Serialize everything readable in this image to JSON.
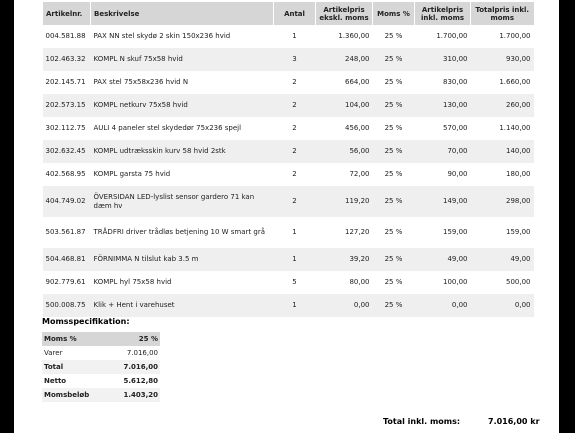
{
  "table": {
    "columns": [
      "Artikelnr.",
      "Beskrivelse",
      "Antal",
      "Artikelpris ekskl. moms",
      "Moms %",
      "Artikelpris inkl. moms",
      "Totalpris inkl. moms"
    ],
    "rows": [
      [
        "004.581.88",
        "PAX NN stel skydø 2 skin 150x236 hvid",
        "1",
        "1.360,00",
        "25 %",
        "1.700,00",
        "1.700,00"
      ],
      [
        "102.463.32",
        "KOMPL N skuf 75x58 hvid",
        "3",
        "248,00",
        "25 %",
        "310,00",
        "930,00"
      ],
      [
        "202.145.71",
        "PAX stel 75x58x236 hvid N",
        "2",
        "664,00",
        "25 %",
        "830,00",
        "1.660,00"
      ],
      [
        "202.573.15",
        "KOMPL netkurv 75x58 hvid",
        "2",
        "104,00",
        "25 %",
        "130,00",
        "260,00"
      ],
      [
        "302.112.75",
        "AULI 4 paneler stel skydedør 75x236 spejl",
        "2",
        "456,00",
        "25 %",
        "570,00",
        "1.140,00"
      ],
      [
        "302.632.45",
        "KOMPL udtræksskin kurv 58 hvid 2stk",
        "2",
        "56,00",
        "25 %",
        "70,00",
        "140,00"
      ],
      [
        "402.568.95",
        "KOMPL garsta 75 hvid",
        "2",
        "72,00",
        "25 %",
        "90,00",
        "180,00"
      ],
      [
        "404.749.02",
        "ÖVERSIDAN LED-lyslist sensor gardero 71 kan dæm hv",
        "2",
        "119,20",
        "25 %",
        "149,00",
        "298,00"
      ],
      [
        "503.561.87",
        "TRÅDFRI driver trådløs betjening 10 W smart grå",
        "1",
        "127,20",
        "25 %",
        "159,00",
        "159,00"
      ],
      [
        "504.468.81",
        "FÖRNIMMA N tilslut kab 3.5 m",
        "1",
        "39,20",
        "25 %",
        "49,00",
        "49,00"
      ],
      [
        "902.779.61",
        "KOMPL hyl 75x58 hvid",
        "5",
        "80,00",
        "25 %",
        "100,00",
        "500,00"
      ],
      [
        "500.008.75",
        "Klik + Hent i varehuset",
        "1",
        "0,00",
        "25 %",
        "0,00",
        "0,00"
      ]
    ]
  },
  "vat_summary": {
    "title": "Momsspecifikation:",
    "columns": [
      "Moms %",
      "25 %"
    ],
    "rows": [
      [
        "Varer",
        "7.016,00"
      ],
      [
        "Total",
        "7.016,00"
      ],
      [
        "Netto",
        "5.612,80"
      ],
      [
        "Momsbeløb",
        "1.403,20"
      ]
    ]
  },
  "total": {
    "label": "Total inkl. moms:",
    "value": "7.016,00 kr"
  }
}
